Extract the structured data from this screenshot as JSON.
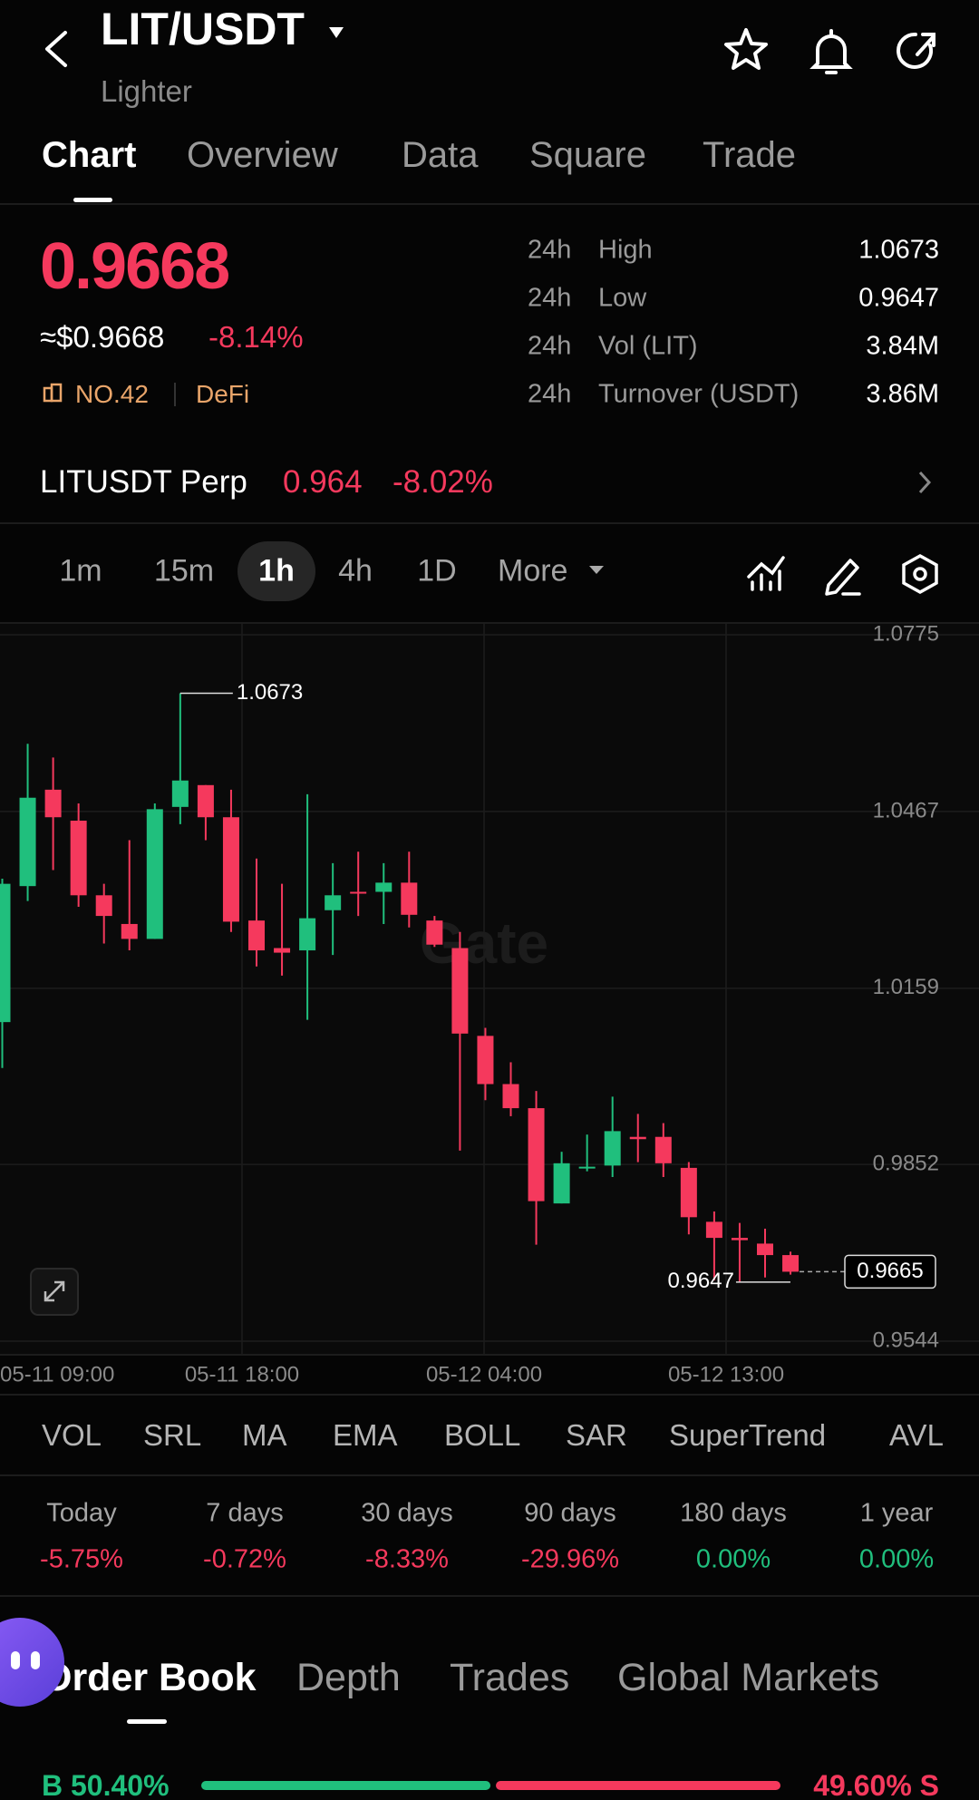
{
  "header": {
    "pair": "LIT/USDT",
    "name": "Lighter"
  },
  "tabs": [
    "Chart",
    "Overview",
    "Data",
    "Square",
    "Trade"
  ],
  "price": {
    "last": "0.9668",
    "usd": "≈$0.9668",
    "change": "-8.14%",
    "rank": "NO.42",
    "sector": "DeFi"
  },
  "stats": [
    {
      "period": "24h",
      "label": "High",
      "value": "1.0673"
    },
    {
      "period": "24h",
      "label": "Low",
      "value": "0.9647"
    },
    {
      "period": "24h",
      "label": "Vol (LIT)",
      "value": "3.84M"
    },
    {
      "period": "24h",
      "label": "Turnover (USDT)",
      "value": "3.86M"
    }
  ],
  "perp": {
    "name": "LITUSDT Perp",
    "price": "0.964",
    "change": "-8.02%"
  },
  "intervals": [
    "1m",
    "15m",
    "1h",
    "4h",
    "1D",
    "More"
  ],
  "chart_data": {
    "type": "candlestick",
    "watermark": "Gate",
    "up_color": "#20bf7d",
    "down_color": "#f5395d",
    "open": [
      1.01,
      1.0337,
      1.0505,
      1.0451,
      1.0321,
      1.0271,
      1.0245,
      1.0475,
      1.0513,
      1.0457,
      1.0277,
      1.0229,
      1.0225,
      1.0295,
      1.0327,
      1.0327,
      1.0343,
      1.0277,
      1.0229,
      1.0076,
      0.9992,
      0.995,
      0.9784,
      0.9846,
      0.985,
      0.99,
      0.99,
      0.9846,
      0.9752,
      0.9724,
      0.9714,
      0.9694
    ],
    "high": [
      1.035,
      1.0585,
      1.0561,
      1.0481,
      1.0341,
      1.0417,
      1.0481,
      1.0673,
      1.0513,
      1.0505,
      1.0385,
      1.0341,
      1.0497,
      1.0377,
      1.0397,
      1.0377,
      1.0397,
      1.0285,
      1.0257,
      1.009,
      1.003,
      0.998,
      0.9874,
      0.9904,
      0.997,
      0.994,
      0.9924,
      0.9856,
      0.977,
      0.975,
      0.974,
      0.97
    ],
    "low": [
      1.002,
      1.0311,
      1.0365,
      1.0301,
      1.0237,
      1.0225,
      1.0245,
      1.0445,
      1.0417,
      1.0257,
      1.0197,
      1.0181,
      1.0104,
      1.0217,
      1.0285,
      1.0271,
      1.0265,
      1.0231,
      0.9876,
      0.9964,
      0.9936,
      0.9712,
      0.9784,
      0.984,
      0.983,
      0.9856,
      0.983,
      0.973,
      0.965,
      0.9647,
      0.9655,
      0.966
    ],
    "close": [
      1.0341,
      1.0491,
      1.0457,
      1.0321,
      1.0285,
      1.0245,
      1.0471,
      1.0521,
      1.0457,
      1.0275,
      1.0225,
      1.0221,
      1.0281,
      1.0321,
      1.0325,
      1.0343,
      1.0287,
      1.0235,
      1.008,
      0.9992,
      0.995,
      0.9788,
      0.9854,
      0.9848,
      0.991,
      0.9896,
      0.9854,
      0.976,
      0.9724,
      0.972,
      0.9694,
      0.9665
    ],
    "ylim": [
      0.9544,
      1.0775
    ],
    "yticks": [
      1.0775,
      1.0467,
      1.0159,
      0.9852,
      0.9544
    ],
    "xtick_labels": [
      "05-11 09:00",
      "05-11 18:00",
      "05-12 04:00",
      "05-12 13:00"
    ],
    "high_marker": 1.0673,
    "low_marker": 0.9647,
    "last_price": 0.9665
  },
  "indicators": [
    "VOL",
    "SRL",
    "MA",
    "EMA",
    "BOLL",
    "SAR",
    "SuperTrend",
    "AVL"
  ],
  "performance": [
    {
      "period": "Today",
      "change": "-5.75%"
    },
    {
      "period": "7 days",
      "change": "-0.72%"
    },
    {
      "period": "30 days",
      "change": "-8.33%"
    },
    {
      "period": "90 days",
      "change": "-29.96%"
    },
    {
      "period": "180 days",
      "change": "0.00%"
    },
    {
      "period": "1 year",
      "change": "0.00%"
    }
  ],
  "book_tabs": [
    "Order Book",
    "Depth",
    "Trades",
    "Global Markets"
  ],
  "ratio": {
    "buy": "B",
    "sell": "S",
    "values": [
      50.4,
      49.6
    ],
    "value_labels": [
      "50.40%",
      "49.60%"
    ]
  }
}
